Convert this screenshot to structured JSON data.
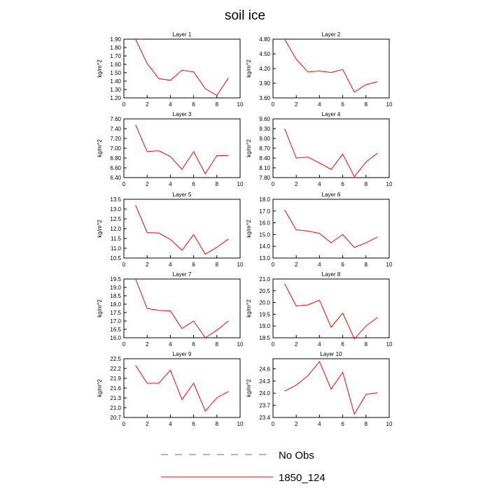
{
  "title": "soil ice",
  "legend": [
    {
      "name": "No Obs",
      "color": "#6060c0",
      "dashed": true
    },
    {
      "name": "1850_124",
      "color": "#ff0000",
      "dashed": false
    }
  ],
  "chart_data": [
    {
      "type": "line",
      "title": "Layer 1",
      "ylabel": "kg/m^2",
      "color": "#ff0000",
      "x": [
        1,
        2,
        3,
        4,
        5,
        6,
        7,
        8,
        9
      ],
      "values": [
        1.9,
        1.61,
        1.43,
        1.41,
        1.53,
        1.51,
        1.31,
        1.23,
        1.44
      ],
      "xlim": [
        0,
        10
      ],
      "xticks": [
        0,
        2,
        4,
        6,
        8,
        10
      ],
      "ylim": [
        1.2,
        1.9
      ],
      "yticks": [
        {
          "value": 1.2,
          "label": "1.20"
        },
        {
          "value": 1.3,
          "label": "1.30"
        },
        {
          "value": 1.4,
          "label": "1.40"
        },
        {
          "value": 1.5,
          "label": "1.50"
        },
        {
          "value": 1.6,
          "label": "1.60"
        },
        {
          "value": 1.7,
          "label": "1.70"
        },
        {
          "value": 1.8,
          "label": "1.80"
        },
        {
          "value": 1.9,
          "label": "1.90"
        }
      ]
    },
    {
      "type": "line",
      "title": "Layer 2",
      "ylabel": "kg/m^2",
      "color": "#ff0000",
      "x": [
        1,
        2,
        3,
        4,
        5,
        6,
        7,
        8,
        9
      ],
      "values": [
        4.8,
        4.39,
        4.13,
        4.15,
        4.12,
        4.18,
        3.72,
        3.87,
        3.93
      ],
      "xlim": [
        0,
        10
      ],
      "xticks": [
        0,
        2,
        4,
        6,
        8,
        10
      ],
      "ylim": [
        3.6,
        4.8
      ],
      "yticks": [
        {
          "value": 3.6,
          "label": "3.60"
        },
        {
          "value": 3.9,
          "label": "3.90"
        },
        {
          "value": 4.2,
          "label": "4.20"
        },
        {
          "value": 4.5,
          "label": "4.50"
        },
        {
          "value": 4.8,
          "label": "4.80"
        }
      ]
    },
    {
      "type": "line",
      "title": "Layer 3",
      "ylabel": "kg/m^2",
      "color": "#ff0000",
      "x": [
        1,
        2,
        3,
        4,
        5,
        6,
        7,
        8,
        9
      ],
      "values": [
        7.48,
        6.93,
        6.95,
        6.83,
        6.57,
        6.93,
        6.48,
        6.85,
        6.85
      ],
      "xlim": [
        0,
        10
      ],
      "xticks": [
        0,
        2,
        4,
        6,
        8,
        10
      ],
      "ylim": [
        6.4,
        7.6
      ],
      "yticks": [
        {
          "value": 6.4,
          "label": "6.40"
        },
        {
          "value": 6.6,
          "label": "6.60"
        },
        {
          "value": 6.8,
          "label": "6.80"
        },
        {
          "value": 7.0,
          "label": "7.00"
        },
        {
          "value": 7.2,
          "label": "7.20"
        },
        {
          "value": 7.4,
          "label": "7.40"
        },
        {
          "value": 7.6,
          "label": "7.60"
        }
      ]
    },
    {
      "type": "line",
      "title": "Layer 4",
      "ylabel": "kg/m^2",
      "color": "#ff0000",
      "x": [
        1,
        2,
        3,
        4,
        5,
        6,
        7,
        8,
        9
      ],
      "values": [
        9.3,
        8.4,
        8.43,
        8.25,
        8.05,
        8.52,
        7.83,
        8.28,
        8.55
      ],
      "xlim": [
        0,
        10
      ],
      "xticks": [
        0,
        2,
        4,
        6,
        8,
        10
      ],
      "ylim": [
        7.8,
        9.6
      ],
      "yticks": [
        {
          "value": 7.8,
          "label": "7.80"
        },
        {
          "value": 8.1,
          "label": "8.10"
        },
        {
          "value": 8.4,
          "label": "8.40"
        },
        {
          "value": 8.7,
          "label": "8.70"
        },
        {
          "value": 9.0,
          "label": "9.00"
        },
        {
          "value": 9.3,
          "label": "9.30"
        },
        {
          "value": 9.6,
          "label": "9.60"
        }
      ]
    },
    {
      "type": "line",
      "title": "Layer 5",
      "ylabel": "kg/m^2",
      "color": "#ff0000",
      "x": [
        1,
        2,
        3,
        4,
        5,
        6,
        7,
        8,
        9
      ],
      "values": [
        13.2,
        11.8,
        11.78,
        11.45,
        10.9,
        11.7,
        10.7,
        11.05,
        11.48
      ],
      "xlim": [
        0,
        10
      ],
      "xticks": [
        0,
        2,
        4,
        6,
        8,
        10
      ],
      "ylim": [
        10.5,
        13.5
      ],
      "yticks": [
        10.5,
        {
          "value": 11,
          "label": "11.0"
        },
        11.5,
        {
          "value": 12,
          "label": "12.0"
        },
        12.5,
        {
          "value": 13,
          "label": "13.0"
        },
        13.5
      ]
    },
    {
      "type": "line",
      "title": "Layer 6",
      "ylabel": "kg/m^2",
      "color": "#ff0000",
      "x": [
        1,
        2,
        3,
        4,
        5,
        6,
        7,
        8,
        9
      ],
      "values": [
        17.1,
        15.4,
        15.3,
        15.1,
        14.3,
        15.0,
        13.9,
        14.3,
        14.8
      ],
      "xlim": [
        0,
        10
      ],
      "xticks": [
        0,
        2,
        4,
        6,
        8,
        10
      ],
      "ylim": [
        13,
        18
      ],
      "yticks": [
        {
          "value": 13,
          "label": "13.0"
        },
        {
          "value": 14,
          "label": "14.0"
        },
        {
          "value": 15,
          "label": "15.0"
        },
        {
          "value": 16,
          "label": "16.0"
        },
        {
          "value": 17,
          "label": "17.0"
        },
        {
          "value": 18,
          "label": "18.0"
        }
      ]
    },
    {
      "type": "line",
      "title": "Layer 7",
      "ylabel": "kg/m^2",
      "color": "#ff0000",
      "x": [
        1,
        2,
        3,
        4,
        5,
        6,
        7,
        8,
        9
      ],
      "values": [
        19.5,
        17.75,
        17.63,
        17.6,
        16.55,
        17.0,
        16.0,
        16.45,
        17.0
      ],
      "xlim": [
        0,
        10
      ],
      "xticks": [
        0,
        2,
        4,
        6,
        8,
        10
      ],
      "ylim": [
        16,
        19.5
      ],
      "yticks": [
        {
          "value": 16,
          "label": "16.0"
        },
        16.5,
        {
          "value": 17,
          "label": "17.0"
        },
        17.5,
        {
          "value": 18,
          "label": "18.0"
        },
        18.5,
        {
          "value": 19,
          "label": "19.0"
        },
        19.5
      ]
    },
    {
      "type": "line",
      "title": "Layer 8",
      "ylabel": "kg/m^2",
      "color": "#ff0000",
      "x": [
        1,
        2,
        3,
        4,
        5,
        6,
        7,
        8,
        9
      ],
      "values": [
        20.8,
        19.85,
        19.9,
        20.1,
        18.95,
        19.55,
        18.45,
        19.0,
        19.37
      ],
      "xlim": [
        0,
        10
      ],
      "xticks": [
        0,
        2,
        4,
        6,
        8,
        10
      ],
      "ylim": [
        18.5,
        21
      ],
      "yticks": [
        18.5,
        {
          "value": 19,
          "label": "19.0"
        },
        19.5,
        {
          "value": 20,
          "label": "20.0"
        },
        20.5,
        {
          "value": 21,
          "label": "21.0"
        }
      ]
    },
    {
      "type": "line",
      "title": "Layer 9",
      "ylabel": "kg/m^2",
      "color": "#ff0000",
      "x": [
        1,
        2,
        3,
        4,
        5,
        6,
        7,
        8,
        9
      ],
      "values": [
        22.3,
        21.75,
        21.75,
        22.15,
        21.25,
        21.75,
        20.9,
        21.3,
        21.5
      ],
      "xlim": [
        0,
        10
      ],
      "xticks": [
        0,
        2,
        4,
        6,
        8,
        10
      ],
      "ylim": [
        20.7,
        22.5
      ],
      "yticks": [
        20.7,
        {
          "value": 21,
          "label": "21.0"
        },
        21.3,
        21.6,
        21.9,
        22.2,
        22.5
      ]
    },
    {
      "type": "line",
      "title": "Layer 10",
      "ylabel": "kg/m^2",
      "color": "#ff0000",
      "x": [
        1,
        2,
        3,
        4,
        5,
        6,
        7,
        8,
        9
      ],
      "values": [
        24.05,
        24.2,
        24.43,
        24.78,
        24.1,
        24.52,
        23.48,
        23.97,
        24.01
      ],
      "xlim": [
        0,
        10
      ],
      "xticks": [
        0,
        2,
        4,
        6,
        8,
        10
      ],
      "ylim": [
        23.4,
        24.85
      ],
      "yticks": [
        23.4,
        23.7,
        {
          "value": 24,
          "label": "24.0"
        },
        24.3,
        24.6
      ]
    }
  ]
}
